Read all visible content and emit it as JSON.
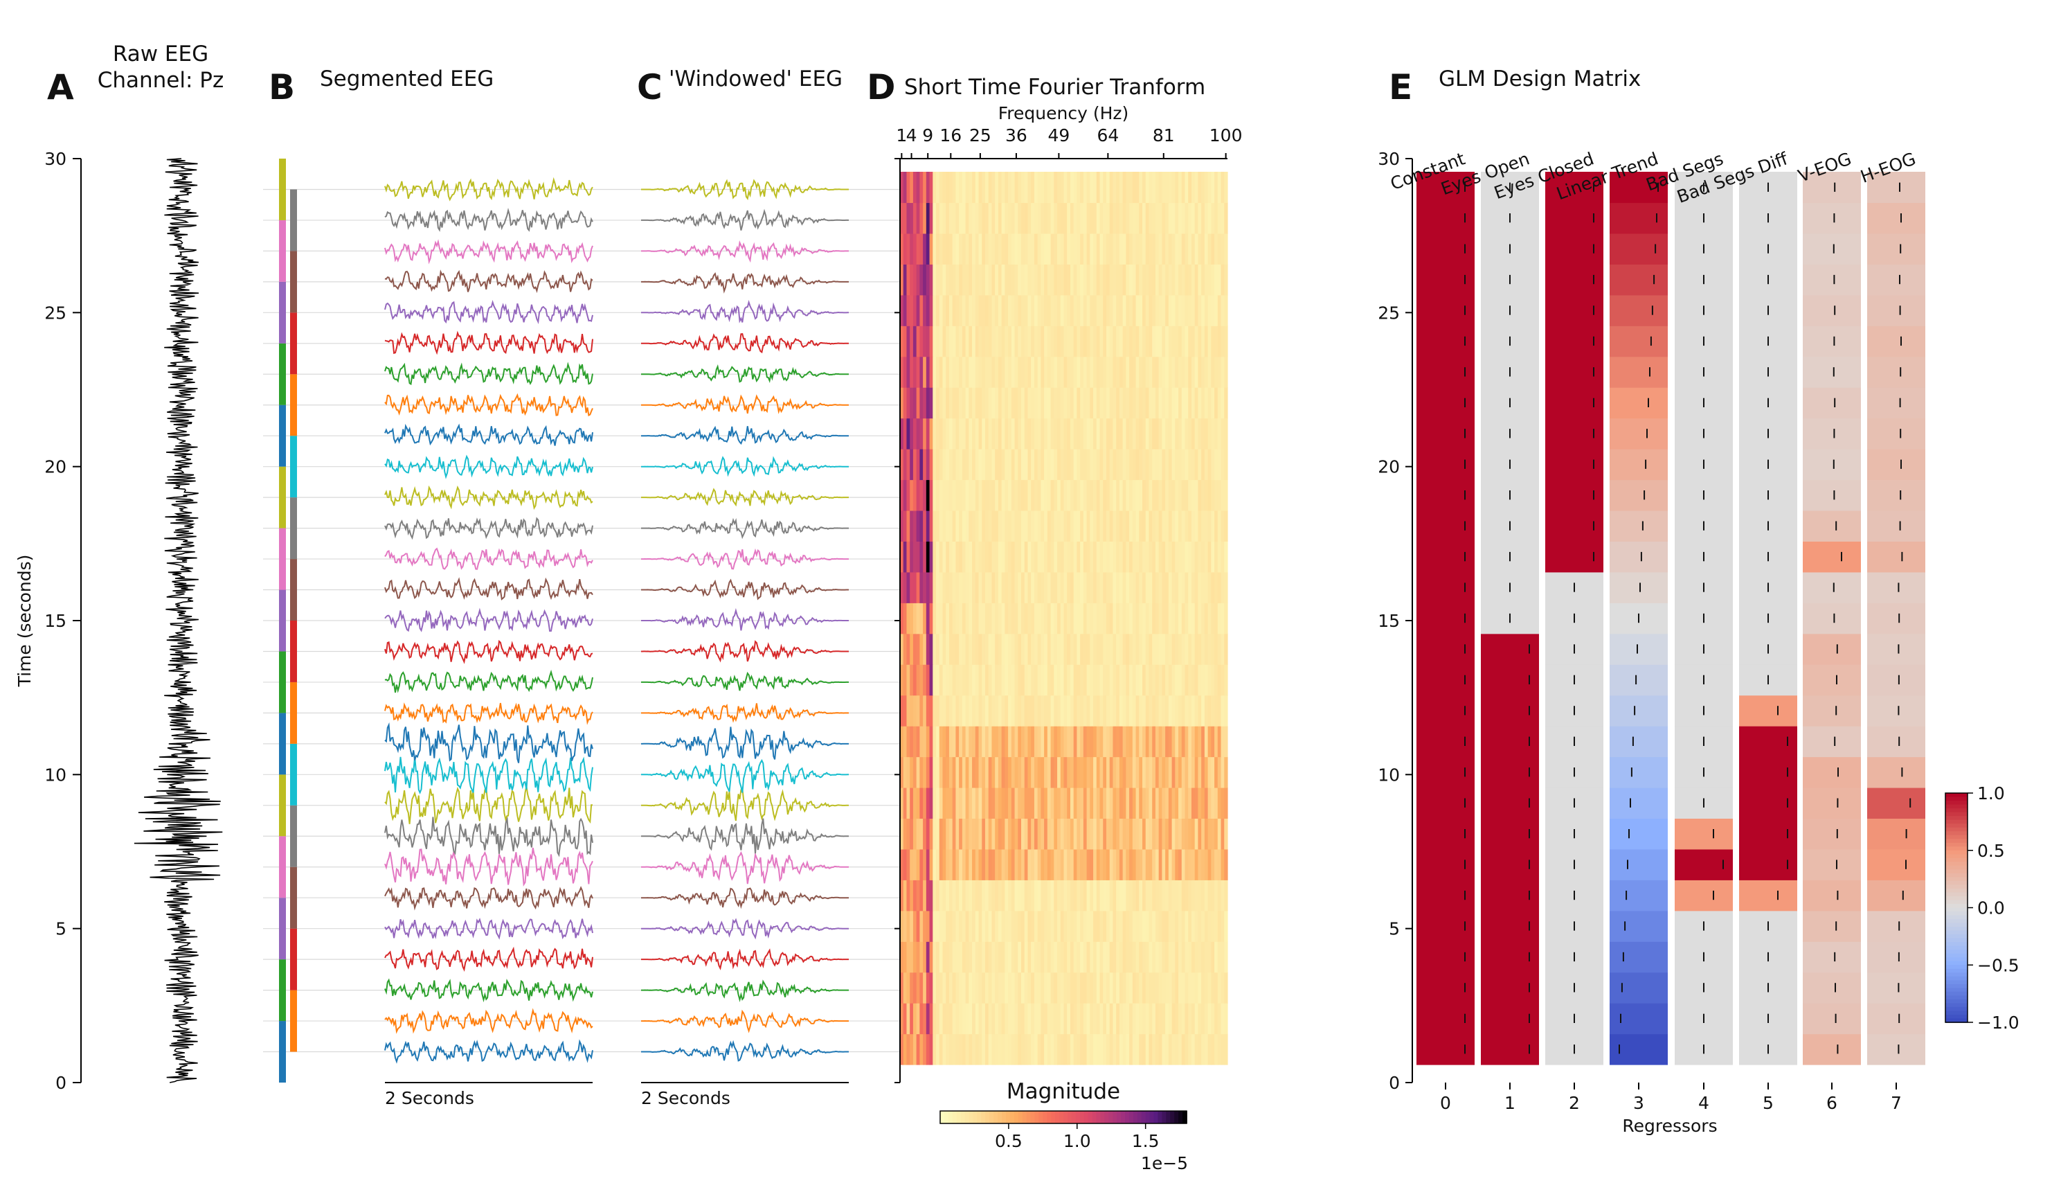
{
  "panels": {
    "a": {
      "letter": "A",
      "title_line1": "Raw EEG",
      "title_line2": "Channel: Pz"
    },
    "b": {
      "letter": "B",
      "title": "Segmented EEG"
    },
    "c": {
      "letter": "C",
      "title": "'Windowed' EEG"
    },
    "d": {
      "letter": "D",
      "title": "Short Time Fourier Tranform"
    },
    "e": {
      "letter": "E",
      "title": "GLM Design Matrix"
    }
  },
  "scale_bars": {
    "b": "2 Seconds",
    "c": "2 Seconds"
  },
  "colors": {
    "segments": [
      "#1f77b4",
      "#ff7f0e",
      "#2ca02c",
      "#d62728",
      "#9467bd",
      "#8c564b",
      "#e377c2",
      "#7f7f7f",
      "#bcbd22",
      "#17becf"
    ],
    "constant_red": "#b2182b",
    "bad_segs_diff_orange": "#f4a582",
    "linear_trend_blue": "#3a4cc0",
    "background_gray": "#dddddd"
  },
  "chart_data": [
    {
      "id": "raw_eeg",
      "type": "line",
      "title": "Raw EEG Channel: Pz",
      "xlabel": "",
      "ylabel": "Time (seconds)",
      "ylim": [
        0,
        30
      ],
      "yticks": [
        0,
        5,
        10,
        15,
        20,
        25,
        30
      ],
      "description_series": "single black EEG trace plotted vertically over 30 s"
    },
    {
      "id": "segmented_eeg",
      "type": "line",
      "title": "Segmented EEG",
      "n_segments": 29,
      "segment_length_s": 2,
      "segment_step_s": 1,
      "scale_bar": "2 Seconds"
    },
    {
      "id": "windowed_eeg",
      "type": "line",
      "title": "'Windowed' EEG",
      "n_segments": 29,
      "scale_bar": "2 Seconds"
    },
    {
      "id": "stft",
      "type": "heatmap",
      "title": "Short Time Fourier Tranform",
      "xlabel": "Frequency (Hz)",
      "xticks": [
        "1",
        "4",
        "9",
        "16",
        "25",
        "36",
        "49",
        "64",
        "81",
        "100"
      ],
      "n_windows": 29,
      "colorbar": {
        "label": "Magnitude",
        "ticks": [
          "0.5",
          "1.0",
          "1.5"
        ],
        "min": 0.0,
        "max": 1.8,
        "scale_text": "1e−5",
        "cmap": "magma_r"
      }
    },
    {
      "id": "glm_design",
      "type": "heatmap",
      "title": "GLM Design Matrix",
      "xlabel": "Regressors",
      "ylim": [
        0,
        30
      ],
      "yticks": [
        0,
        5,
        10,
        15,
        20,
        25,
        30
      ],
      "regressors": [
        "Constant",
        "Eyes Open",
        "Eyes Closed",
        "Linear Trend",
        "Bad Segs",
        "Bad Segs Diff",
        "V-EOG",
        "H-EOG"
      ],
      "regressor_indices": [
        "0",
        "1",
        "2",
        "3",
        "4",
        "5",
        "6",
        "7"
      ],
      "colorbar": {
        "ticks": [
          "1.0",
          "0.5",
          "0.0",
          "−0.5",
          "−1.0"
        ],
        "min": -1.0,
        "max": 1.0,
        "cmap": "coolwarm"
      },
      "rows_bottom_to_top": 29,
      "columns": {
        "Constant": [
          1,
          1,
          1,
          1,
          1,
          1,
          1,
          1,
          1,
          1,
          1,
          1,
          1,
          1,
          1,
          1,
          1,
          1,
          1,
          1,
          1,
          1,
          1,
          1,
          1,
          1,
          1,
          1,
          1
        ],
        "Eyes Open": [
          1,
          1,
          1,
          1,
          1,
          1,
          1,
          1,
          1,
          1,
          1,
          1,
          1,
          1,
          0,
          0,
          0,
          0,
          0,
          0,
          0,
          0,
          0,
          0,
          0,
          0,
          0,
          0,
          0
        ],
        "Eyes Closed": [
          0,
          0,
          0,
          0,
          0,
          0,
          0,
          0,
          0,
          0,
          0,
          0,
          0,
          0,
          0,
          0,
          1,
          1,
          1,
          1,
          1,
          1,
          1,
          1,
          1,
          1,
          1,
          1,
          1
        ],
        "Linear Trend": [
          -1.0,
          -0.93,
          -0.86,
          -0.79,
          -0.71,
          -0.64,
          -0.57,
          -0.5,
          -0.43,
          -0.36,
          -0.29,
          -0.21,
          -0.14,
          -0.07,
          0.0,
          0.07,
          0.14,
          0.21,
          0.29,
          0.36,
          0.43,
          0.5,
          0.57,
          0.64,
          0.71,
          0.79,
          0.86,
          0.93,
          1.0
        ],
        "Bad Segs": [
          0,
          0,
          0,
          0,
          0,
          0.5,
          1,
          0.5,
          0,
          0,
          0,
          0,
          0,
          0,
          0,
          0,
          0,
          0,
          0,
          0,
          0,
          0,
          0,
          0,
          0,
          0,
          0,
          0,
          0
        ],
        "Bad Segs Diff": [
          0,
          0,
          0,
          0,
          0,
          0.5,
          1,
          1,
          1,
          1,
          1,
          0.5,
          0,
          0,
          0,
          0,
          0,
          0,
          0,
          0,
          0,
          0,
          0,
          0,
          0,
          0,
          0,
          0,
          0
        ],
        "V-EOG": [
          0.3,
          0.2,
          0.18,
          0.15,
          0.22,
          0.3,
          0.25,
          0.28,
          0.3,
          0.32,
          0.15,
          0.22,
          0.25,
          0.28,
          0.12,
          0.1,
          0.5,
          0.22,
          0.12,
          0.1,
          0.12,
          0.15,
          0.1,
          0.12,
          0.15,
          0.12,
          0.1,
          0.12,
          0.15
        ],
        "H-EOG": [
          0.12,
          0.15,
          0.12,
          0.14,
          0.15,
          0.35,
          0.5,
          0.52,
          0.72,
          0.3,
          0.15,
          0.12,
          0.14,
          0.12,
          0.15,
          0.12,
          0.3,
          0.2,
          0.22,
          0.25,
          0.22,
          0.2,
          0.22,
          0.25,
          0.2,
          0.18,
          0.22,
          0.25,
          0.18
        ]
      }
    }
  ]
}
